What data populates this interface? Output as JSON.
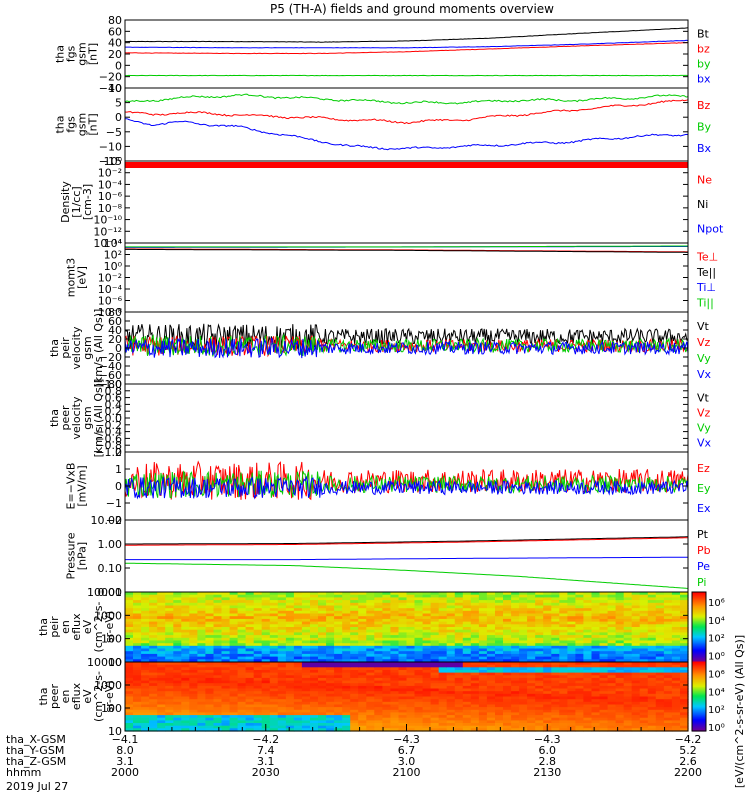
{
  "title": "P5 (TH-A) fields and ground moments overview",
  "colors": {
    "black": "#000000",
    "red": "#ff0000",
    "green": "#00cc00",
    "blue": "#0000ff"
  },
  "chart_data": [
    {
      "type": "line",
      "title": "tha fgs gsm [nT]",
      "ylabel": [
        "tha",
        "fgs",
        "gsm",
        "[nT]"
      ],
      "ylim": [
        -40,
        80
      ],
      "yticks": [
        "80",
        "60",
        "40",
        "20",
        "0",
        "−20",
        "−40"
      ],
      "series": [
        {
          "name": "Bt",
          "color": "black",
          "x": [
            0,
            0.2,
            0.35,
            0.5,
            0.65,
            0.8,
            1
          ],
          "values": [
            42,
            42,
            41,
            43,
            48,
            56,
            66
          ]
        },
        {
          "name": "bz",
          "color": "red",
          "x": [
            0,
            0.2,
            0.35,
            0.5,
            0.65,
            0.8,
            1
          ],
          "values": [
            22,
            21,
            21,
            24,
            29,
            34,
            40
          ]
        },
        {
          "name": "by",
          "color": "green",
          "x": [
            0,
            0.5,
            1
          ],
          "values": [
            -18,
            -18,
            -18
          ]
        },
        {
          "name": "bx",
          "color": "blue",
          "x": [
            0,
            0.2,
            0.35,
            0.5,
            0.65,
            0.8,
            1
          ],
          "values": [
            32,
            31,
            31,
            31,
            33,
            37,
            44
          ]
        }
      ]
    },
    {
      "type": "line",
      "title": "tha fgs gsm [nT] dtrend",
      "ylabel": [
        "tha",
        "fgs",
        "gsm",
        "[nT]"
      ],
      "ylim": [
        -18,
        12
      ],
      "yticks": [
        "10",
        "5",
        "0",
        "−5",
        "−10",
        "−15"
      ],
      "series": [
        {
          "name": "Bz",
          "color": "red",
          "x": [
            0,
            0.05,
            0.1,
            0.2,
            0.3,
            0.4,
            0.5,
            0.6,
            0.7,
            0.8,
            0.9,
            1
          ],
          "values": [
            2,
            1,
            2,
            1,
            0,
            -1,
            -2,
            -1,
            1,
            3,
            5,
            7
          ]
        },
        {
          "name": "By",
          "color": "green",
          "x": [
            0,
            0.1,
            0.2,
            0.3,
            0.4,
            0.5,
            0.6,
            0.7,
            0.8,
            0.9,
            1
          ],
          "values": [
            6,
            8,
            9,
            8,
            7,
            6,
            6,
            7,
            7,
            8,
            9
          ]
        },
        {
          "name": "Bx",
          "color": "blue",
          "x": [
            0,
            0.05,
            0.1,
            0.2,
            0.3,
            0.4,
            0.5,
            0.6,
            0.7,
            0.8,
            0.9,
            1
          ],
          "values": [
            -1,
            -3,
            -2,
            -4,
            -8,
            -12,
            -13,
            -12,
            -11,
            -10,
            -8,
            -7
          ]
        }
      ]
    },
    {
      "type": "line",
      "title": "tha peir density",
      "ylabel": [
        "Density",
        "[1/cc]",
        "[cm-3]"
      ],
      "ylim": [
        -15,
        1
      ],
      "yticks": [
        "10⁰",
        "10⁻²",
        "10⁻⁴",
        "10⁻⁶",
        "10⁻⁸",
        "10⁻¹⁰",
        "10⁻¹²",
        "10⁻¹⁴"
      ],
      "series": [
        {
          "name": "Ne",
          "color": "red",
          "x": [
            0,
            1
          ],
          "values": [
            0.1,
            0.1
          ]
        },
        {
          "name": "Ni",
          "color": "black",
          "x": [
            0,
            1
          ],
          "values": [
            0.0,
            -0.1
          ]
        },
        {
          "name": "Npot",
          "color": "blue",
          "x": [
            0,
            1
          ],
          "values": [
            0.2,
            0.2
          ]
        }
      ]
    },
    {
      "type": "line",
      "title": "tha moms",
      "ylabel": [
        "momt3",
        "[eV]"
      ],
      "ylim": [
        -9,
        5
      ],
      "yticks": [
        "10⁴",
        "10²",
        "10⁰",
        "10⁻²",
        "10⁻⁴",
        "10⁻⁶",
        "10⁻⁸"
      ],
      "series": [
        {
          "name": "Te⊥",
          "color": "red",
          "x": [
            0,
            0.5,
            1
          ],
          "values": [
            3.8,
            3.6,
            3.2
          ]
        },
        {
          "name": "Te||",
          "color": "black",
          "x": [
            0,
            0.5,
            1
          ],
          "values": [
            3.7,
            3.5,
            3.1
          ]
        },
        {
          "name": "Ti⊥",
          "color": "blue",
          "x": [
            0,
            0.5,
            1
          ],
          "values": [
            4.1,
            4.2,
            4.3
          ]
        },
        {
          "name": "Ti||",
          "color": "green",
          "x": [
            0,
            0.5,
            1
          ],
          "values": [
            4.2,
            4.2,
            4.4
          ]
        }
      ]
    },
    {
      "type": "line",
      "title": "tha peir velocity gsm",
      "ylabel": [
        "tha",
        "peir",
        "velocity",
        "gsm",
        "[km/s (All Qs)]"
      ],
      "ylim": [
        -80,
        80
      ],
      "yticks": [
        "80",
        "60",
        "40",
        "20",
        "0",
        "−20",
        "−40",
        "−60",
        "−80"
      ],
      "series": [
        {
          "name": "Vt",
          "color": "black",
          "base": 25,
          "amp": 18,
          "noise_ratio": 1
        },
        {
          "name": "Vz",
          "color": "red",
          "base": 5,
          "amp": 14,
          "noise_ratio": 1
        },
        {
          "name": "Vy",
          "color": "green",
          "base": 5,
          "amp": 15,
          "noise_ratio": 1
        },
        {
          "name": "Vx",
          "color": "blue",
          "base": 0,
          "amp": 14,
          "noise_ratio": 1
        }
      ]
    },
    {
      "type": "line",
      "title": "tha peer velocity gsm",
      "ylabel": [
        "tha",
        "peer",
        "velocity",
        "gsm",
        "[km/s (All Qs)]"
      ],
      "ylim": [
        -1,
        1
      ],
      "yticks": [
        "1.0",
        "0.8",
        "0.6",
        "0.4",
        "0.2",
        "0.0",
        "−0.2",
        "−0.4",
        "−0.6",
        "−0.8",
        "−1.0"
      ],
      "series": [
        {
          "name": "Vt",
          "color": "black"
        },
        {
          "name": "Vz",
          "color": "red"
        },
        {
          "name": "Vy",
          "color": "green"
        },
        {
          "name": "Vx",
          "color": "blue"
        }
      ]
    },
    {
      "type": "line",
      "title": "E=-VxB",
      "ylabel": [
        "E=−VxB",
        "[mV/m]"
      ],
      "ylim": [
        -2,
        2
      ],
      "yticks": [
        "2",
        "1",
        "0",
        "−1",
        "−2"
      ],
      "series": [
        {
          "name": "Ez",
          "color": "red",
          "base": 0.3,
          "amp": 0.7
        },
        {
          "name": "Ey",
          "color": "green",
          "base": 0.1,
          "amp": 0.5
        },
        {
          "name": "Ex",
          "color": "blue",
          "base": -0.1,
          "amp": 0.4
        }
      ]
    },
    {
      "type": "line",
      "title": "Pressure",
      "ylabel": [
        "Pressure",
        "[nPa]"
      ],
      "ylim": [
        -2,
        1
      ],
      "log": true,
      "yticks": [
        "10.00",
        "1.00",
        "0.10",
        "0.01"
      ],
      "series": [
        {
          "name": "Pt",
          "color": "black",
          "x": [
            0,
            0.3,
            0.6,
            1
          ],
          "values": [
            0.0,
            0.02,
            0.12,
            0.3
          ]
        },
        {
          "name": "Pb",
          "color": "red",
          "x": [
            0,
            0.3,
            0.6,
            1
          ],
          "values": [
            -0.05,
            -0.02,
            0.08,
            0.26
          ]
        },
        {
          "name": "Pe",
          "color": "blue",
          "x": [
            0,
            0.3,
            0.6,
            1
          ],
          "values": [
            -0.65,
            -0.65,
            -0.6,
            -0.55
          ]
        },
        {
          "name": "Pi",
          "color": "green",
          "x": [
            0,
            0.3,
            0.5,
            0.7,
            1
          ],
          "values": [
            -0.8,
            -0.9,
            -1.1,
            -1.35,
            -1.85
          ]
        }
      ]
    },
    {
      "type": "heatmap",
      "title": "tha peir en eflux",
      "ylabel": [
        "tha",
        "peir",
        "en",
        "eflux",
        "eV",
        "(cm^2-s-",
        "sr-eV)"
      ],
      "yticks": [
        "10000",
        "1000",
        "100",
        "10"
      ]
    },
    {
      "type": "heatmap",
      "title": "tha peer en eflux",
      "ylabel": [
        "tha",
        "peer",
        "en",
        "eflux",
        "eV",
        "(cm^2-s-",
        "sr-eV)"
      ],
      "yticks": [
        "10000",
        "1000",
        "100",
        "10"
      ]
    }
  ],
  "colorbar": {
    "ticks": [
      "10⁶",
      "10⁴",
      "10²",
      "10⁰",
      "10⁶",
      "10⁴",
      "10²",
      "10⁰"
    ],
    "label": "[eV/(cm^2-s-sr-eV) (All Qs)]"
  },
  "xaxis": {
    "rows": [
      {
        "label": "tha_X-GSM",
        "values": [
          "−4.1",
          "−4.2",
          "−4.3",
          "−4.3",
          "−4.2"
        ]
      },
      {
        "label": "tha_Y-GSM",
        "values": [
          "8.0",
          "7.4",
          "6.7",
          "6.0",
          "5.2"
        ]
      },
      {
        "label": "tha_Z-GSM",
        "values": [
          "3.1",
          "3.1",
          "3.0",
          "2.8",
          "2.6"
        ]
      },
      {
        "label": "hhmm",
        "values": [
          "2000",
          "2030",
          "2100",
          "2130",
          "2200"
        ]
      }
    ],
    "date": "2019 Jul 27"
  }
}
